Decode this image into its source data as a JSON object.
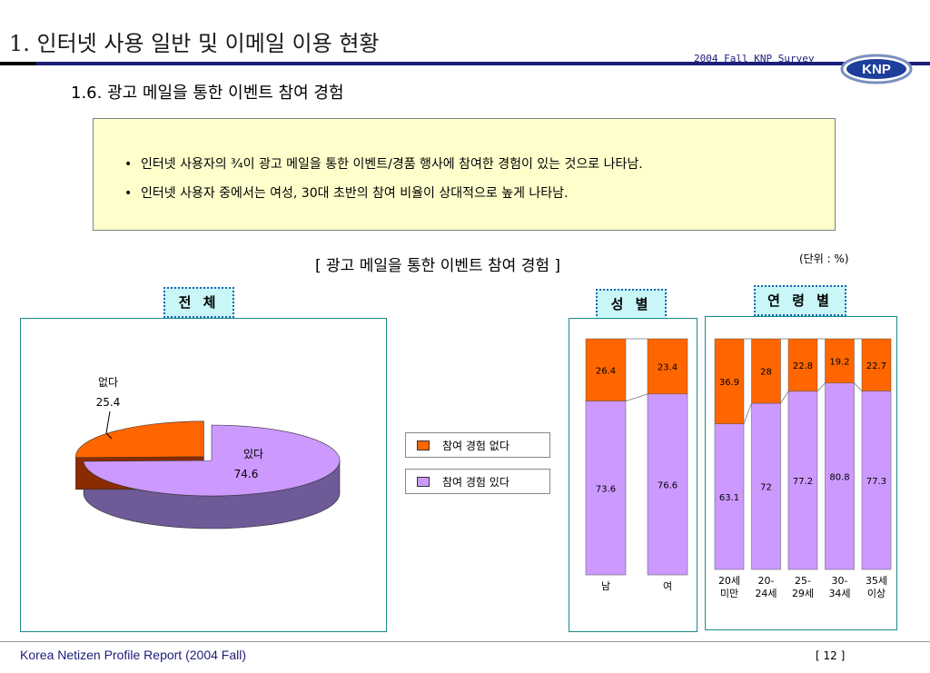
{
  "header": {
    "title": "1. 인터넷 사용 일반 및 이메일 이용 현황",
    "survey": "2004 Fall KNP Survey",
    "logo_text": "KNP",
    "subtitle": "1.6.  광고 메일을 통한 이벤트 참여 경험"
  },
  "summary": {
    "bullets": [
      "인터넷 사용자의 ¾이 광고 메일을 통한 이벤트/경품 행사에 참여한 경험이 있는 것으로 나타남.",
      "인터넷 사용자 중에서는 여성, 30대 초반의 참여 비율이 상대적으로 높게 나타남."
    ]
  },
  "chart_title": "[ 광고 메일을 통한 이벤트 참여 경험 ]",
  "unit": "(단위 : %)",
  "tags": {
    "total": "전 체",
    "gender": "성 별",
    "age": "연 령 별"
  },
  "legend": {
    "no": "참여 경험 없다",
    "yes": "참여 경험 있다"
  },
  "colors": {
    "no": "#ff6600",
    "yes": "#cc99ff",
    "yes_side": "#6d5a96",
    "no_side": "#8a2b00"
  },
  "chart_data": [
    {
      "type": "pie",
      "categories": [
        "없다",
        "있다"
      ],
      "values": [
        25.4,
        74.6
      ]
    },
    {
      "type": "bar",
      "stacked": true,
      "percent": true,
      "categories": [
        "남",
        "여"
      ],
      "series": [
        {
          "name": "참여 경험 있다",
          "values": [
            73.6,
            76.6
          ]
        },
        {
          "name": "참여 경험 없다",
          "values": [
            26.4,
            23.4
          ]
        }
      ]
    },
    {
      "type": "bar",
      "stacked": true,
      "percent": true,
      "categories": [
        "20세\n미만",
        "20-\n24세",
        "25-\n29세",
        "30-\n34세",
        "35세\n이상"
      ],
      "series": [
        {
          "name": "참여 경험 있다",
          "values": [
            63.1,
            72,
            77.2,
            80.8,
            77.3
          ]
        },
        {
          "name": "참여 경험 없다",
          "values": [
            36.9,
            28,
            22.8,
            19.2,
            22.7
          ]
        }
      ]
    }
  ],
  "footer": {
    "report": "Korea Netizen Profile Report (2004 Fall)",
    "page": "[ 12 ]"
  }
}
